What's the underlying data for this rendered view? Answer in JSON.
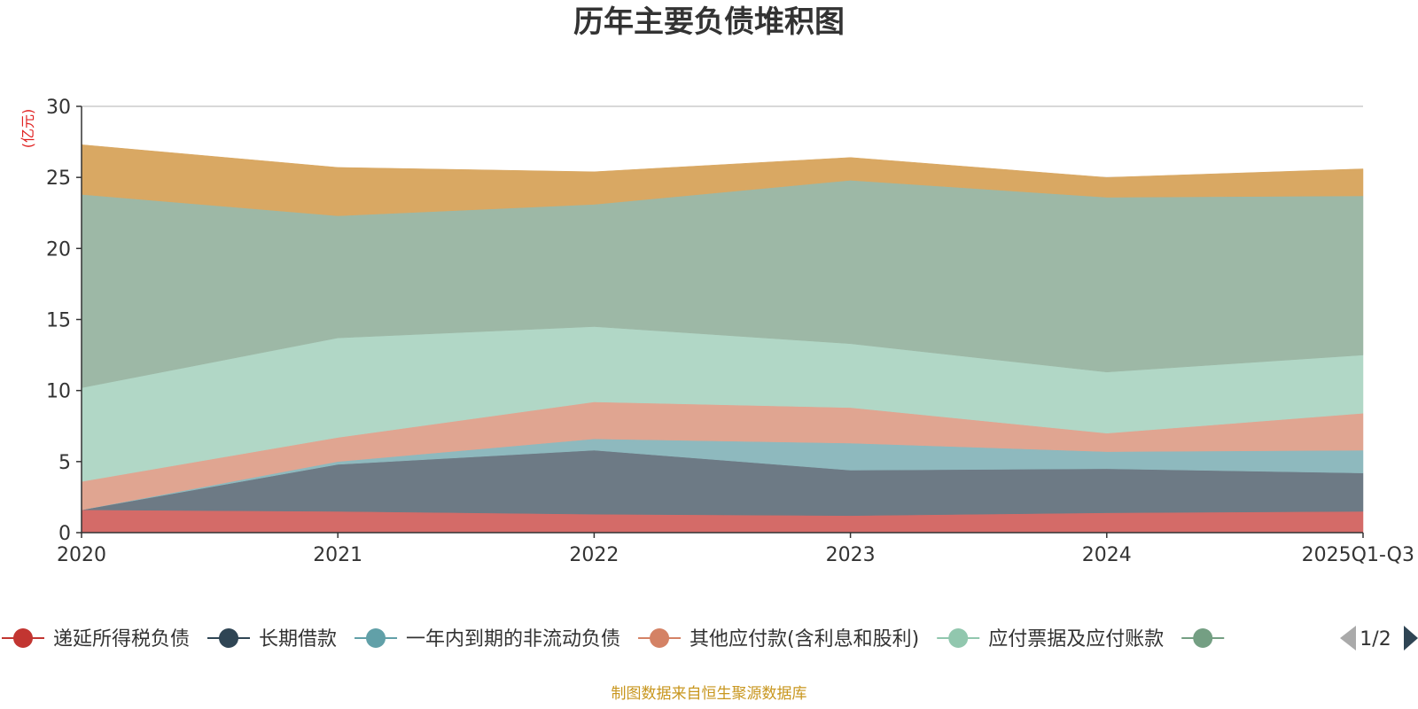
{
  "chart_data": {
    "type": "area",
    "stacked": true,
    "title": "历年主要负债堆积图",
    "unit_label": "(亿元)",
    "categories": [
      "2020",
      "2021",
      "2022",
      "2023",
      "2024",
      "2025Q1-Q3"
    ],
    "ylim": [
      0,
      30
    ],
    "yticks": [
      0,
      5,
      10,
      15,
      20,
      25,
      30
    ],
    "grid": true,
    "series": [
      {
        "name": "递延所得税负债",
        "color": "#c23531",
        "fill": "#d46b68",
        "values": [
          1.6,
          1.5,
          1.3,
          1.2,
          1.4,
          1.5
        ]
      },
      {
        "name": "长期借款",
        "color": "#2f4554",
        "fill": "#6d7a85",
        "values": [
          0.0,
          3.3,
          4.5,
          3.2,
          3.1,
          2.7
        ]
      },
      {
        "name": "一年内到期的非流动负债",
        "color": "#61a0a8",
        "fill": "#8eb9be",
        "values": [
          0.0,
          0.2,
          0.8,
          1.9,
          1.2,
          1.6
        ]
      },
      {
        "name": "其他应付款(含利息和股利)",
        "color": "#d48265",
        "fill": "#e0a591",
        "values": [
          2.0,
          1.7,
          2.6,
          2.5,
          1.3,
          2.6
        ]
      },
      {
        "name": "应付票据及应付账款",
        "color": "#91c7ae",
        "fill": "#b1d7c6",
        "values": [
          6.6,
          7.0,
          5.3,
          4.5,
          4.3,
          4.1
        ]
      },
      {
        "name": "",
        "color": "#749f83",
        "fill": "#9db8a6",
        "values": [
          13.6,
          8.6,
          8.6,
          11.5,
          12.3,
          11.2
        ]
      },
      {
        "name": "",
        "color": "#ca8622",
        "fill": "#d9a863",
        "values": [
          3.5,
          3.4,
          2.3,
          1.6,
          1.4,
          1.9
        ]
      }
    ],
    "legend": {
      "position": "bottom",
      "visible_items": [
        "递延所得税负债",
        "长期借款",
        "一年内到期的非流动负债",
        "其他应付款(含利息和股利)",
        "应付票据及应付账款"
      ],
      "page": "1/2"
    }
  },
  "footer": {
    "source": "制图数据来自恒生聚源数据库"
  }
}
